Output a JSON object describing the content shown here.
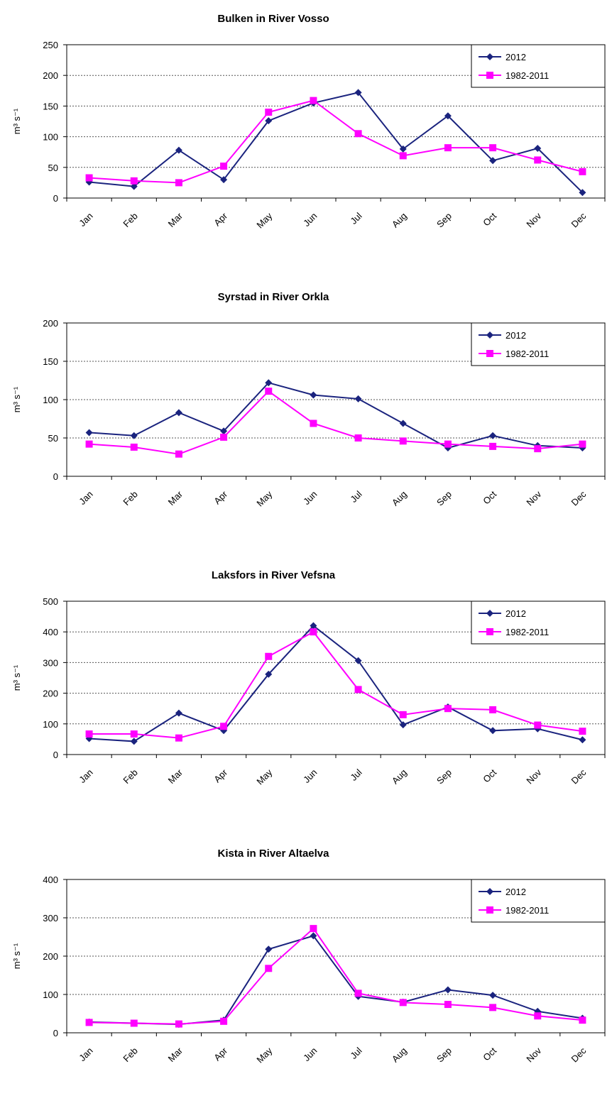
{
  "chart_data": [
    {
      "type": "line",
      "title": "Bulken in River Vosso",
      "ylabel": "m³ s⁻¹",
      "categories": [
        "Jan",
        "Feb",
        "Mar",
        "Apr",
        "May",
        "Jun",
        "Jul",
        "Aug",
        "Sep",
        "Oct",
        "Nov",
        "Dec"
      ],
      "ylim": [
        0,
        250
      ],
      "yticks": [
        0,
        50,
        100,
        150,
        200,
        250
      ],
      "grid": true,
      "legend": "top-right",
      "series": [
        {
          "name": "2012",
          "color": "#1a237e",
          "marker": "diamond",
          "values": [
            26,
            19,
            78,
            30,
            126,
            155,
            172,
            80,
            134,
            61,
            81,
            9
          ]
        },
        {
          "name": "1982-2011",
          "color": "#ff00ff",
          "marker": "square",
          "values": [
            33,
            28,
            25,
            52,
            140,
            159,
            105,
            69,
            82,
            82,
            62,
            43
          ]
        }
      ]
    },
    {
      "type": "line",
      "title": "Syrstad in River Orkla",
      "ylabel": "m³ s⁻¹",
      "categories": [
        "Jan",
        "Feb",
        "Mar",
        "Apr",
        "May",
        "Jun",
        "Jul",
        "Aug",
        "Sep",
        "Oct",
        "Nov",
        "Dec"
      ],
      "ylim": [
        0,
        200
      ],
      "yticks": [
        0,
        50,
        100,
        150,
        200
      ],
      "grid": true,
      "legend": "top-right",
      "series": [
        {
          "name": "2012",
          "color": "#1a237e",
          "marker": "diamond",
          "values": [
            57,
            53,
            83,
            59,
            122,
            106,
            101,
            69,
            37,
            53,
            40,
            37
          ]
        },
        {
          "name": "1982-2011",
          "color": "#ff00ff",
          "marker": "square",
          "values": [
            42,
            38,
            29,
            51,
            111,
            69,
            50,
            46,
            42,
            39,
            36,
            42
          ]
        }
      ]
    },
    {
      "type": "line",
      "title": "Laksfors in River Vefsna",
      "ylabel": "m³ s⁻¹",
      "categories": [
        "Jan",
        "Feb",
        "Mar",
        "Apr",
        "May",
        "Jun",
        "Jul",
        "Aug",
        "Sep",
        "Oct",
        "Nov",
        "Dec"
      ],
      "ylim": [
        0,
        500
      ],
      "yticks": [
        0,
        100,
        200,
        300,
        400,
        500
      ],
      "grid": true,
      "legend": "top-right",
      "series": [
        {
          "name": "2012",
          "color": "#1a237e",
          "marker": "diamond",
          "values": [
            52,
            43,
            135,
            78,
            262,
            420,
            306,
            97,
            155,
            78,
            84,
            48
          ]
        },
        {
          "name": "1982-2011",
          "color": "#ff00ff",
          "marker": "square",
          "values": [
            67,
            67,
            54,
            92,
            320,
            400,
            212,
            130,
            150,
            146,
            96,
            76
          ]
        }
      ]
    },
    {
      "type": "line",
      "title": "Kista in River Altaelva",
      "ylabel": "m³ s⁻¹",
      "categories": [
        "Jan",
        "Feb",
        "Mar",
        "Apr",
        "May",
        "Jun",
        "Jul",
        "Aug",
        "Sep",
        "Oct",
        "Nov",
        "Dec"
      ],
      "ylim": [
        0,
        400
      ],
      "yticks": [
        0,
        100,
        200,
        300,
        400
      ],
      "grid": true,
      "legend": "top-right",
      "series": [
        {
          "name": "2012",
          "color": "#1a237e",
          "marker": "diamond",
          "values": [
            28,
            25,
            22,
            33,
            218,
            253,
            95,
            80,
            112,
            98,
            56,
            38
          ]
        },
        {
          "name": "1982-2011",
          "color": "#ff00ff",
          "marker": "square",
          "values": [
            27,
            25,
            23,
            30,
            168,
            272,
            103,
            79,
            74,
            66,
            44,
            33
          ]
        }
      ]
    }
  ]
}
